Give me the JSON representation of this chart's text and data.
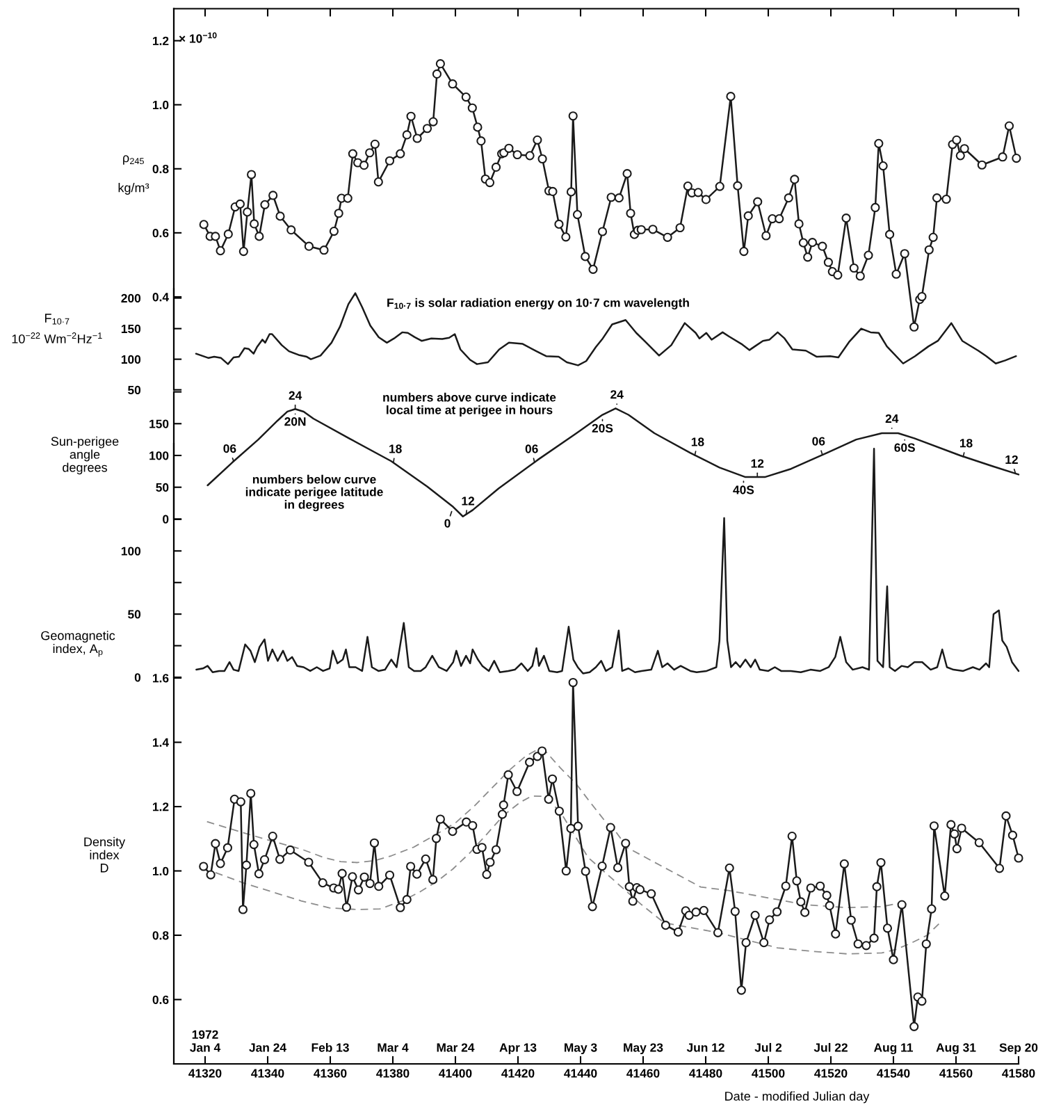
{
  "chart_data": [
    {
      "type": "line",
      "ylabel": "ρ$_{245}$\nkg/m³",
      "annotations": [
        "× 10$^{−10}$"
      ],
      "xlim": [
        41310,
        41580
      ],
      "xticks": [
        41320,
        41340,
        41360,
        41380,
        41400,
        41420,
        41440,
        41460,
        41480,
        41500,
        41520,
        41540,
        41560,
        41580
      ],
      "ylim": [
        0.3,
        1.3
      ],
      "yticks": [
        0.4,
        0.6,
        0.8,
        {
          "value": 1.0,
          "label": "1.0"
        },
        1.2
      ],
      "tick_labels": "y",
      "marker": "circle",
      "series": [
        {
          "color": "#1a1a1a",
          "x": [
            41319.6,
            41321.6,
            41323.3,
            41324.9,
            41327.4,
            41329.6,
            41331.2,
            41332.3,
            41333.5,
            41334.8,
            41335.7,
            41337.3,
            41339.1,
            41341.7,
            41344.0,
            41347.5,
            41353.2,
            41358.0,
            41361.2,
            41362.7,
            41363.6,
            41365.6,
            41367.2,
            41368.8,
            41370.8,
            41372.6,
            41374.3,
            41375.4,
            41379.0,
            41382.4,
            41384.5,
            41385.8,
            41387.8,
            41391.0,
            41392.9,
            41394.1,
            41395.2,
            41399.1,
            41403.4,
            41405.4,
            41407.1,
            41408.2,
            41409.6,
            41411.0,
            41413.0,
            41414.8,
            41415.5,
            41417.1,
            41419.8,
            41423.8,
            41426.2,
            41427.8,
            41429.9,
            41431.1,
            41433.1,
            41435.3,
            41437.0,
            41437.6,
            41439.0,
            41441.5,
            41444.0,
            41447.0,
            41449.8,
            41452.3,
            41454.9,
            41456.0,
            41457.2,
            41458.3,
            41459.4,
            41463.1,
            41467.8,
            41471.8,
            41474.3,
            41475.6,
            41477.6,
            41480.1,
            41484.5,
            41488.0,
            41490.2,
            41492.2,
            41493.6,
            41496.6,
            41499.3,
            41501.3,
            41503.5,
            41506.5,
            41508.4,
            41509.8,
            41511.2,
            41512.6,
            41514.1,
            41517.3,
            41519.2,
            41520.5,
            41522.2,
            41524.9,
            41527.4,
            41529.4,
            41532.0,
            41534.2,
            41535.3,
            41536.7,
            41538.8,
            41540.9,
            41543.6,
            41546.6,
            41548.4,
            41549.1,
            41551.4,
            41552.7,
            41553.9,
            41556.9,
            41558.9,
            41560.2,
            41561.4,
            41562.7,
            41568.3,
            41574.9,
            41577.0,
            41579.3
          ],
          "values": [
            0.626,
            0.589,
            0.589,
            0.544,
            0.596,
            0.681,
            0.69,
            0.542,
            0.665,
            0.782,
            0.628,
            0.589,
            0.688,
            0.717,
            0.652,
            0.609,
            0.558,
            0.546,
            0.605,
            0.661,
            0.708,
            0.708,
            0.847,
            0.819,
            0.811,
            0.85,
            0.877,
            0.759,
            0.825,
            0.847,
            0.906,
            0.964,
            0.895,
            0.926,
            0.947,
            1.096,
            1.128,
            1.065,
            1.024,
            0.99,
            0.93,
            0.887,
            0.768,
            0.757,
            0.805,
            0.847,
            0.85,
            0.864,
            0.844,
            0.841,
            0.89,
            0.831,
            0.731,
            0.729,
            0.627,
            0.587,
            0.728,
            0.965,
            0.657,
            0.526,
            0.486,
            0.604,
            0.711,
            0.709,
            0.785,
            0.661,
            0.595,
            0.608,
            0.61,
            0.611,
            0.586,
            0.616,
            0.746,
            0.725,
            0.726,
            0.704,
            0.745,
            1.026,
            0.747,
            0.542,
            0.653,
            0.697,
            0.591,
            0.644,
            0.644,
            0.709,
            0.767,
            0.628,
            0.569,
            0.524,
            0.57,
            0.558,
            0.508,
            0.479,
            0.468,
            0.646,
            0.49,
            0.465,
            0.53,
            0.679,
            0.879,
            0.809,
            0.595,
            0.471,
            0.535,
            0.306,
            0.392,
            0.401,
            0.547,
            0.586,
            0.709,
            0.705,
            0.876,
            0.89,
            0.841,
            0.863,
            0.812,
            0.837,
            0.934,
            0.833
          ]
        }
      ]
    },
    {
      "type": "line",
      "ylabel": "F$_{10·7}$\n10$^{−22}$ Wm$^{−2}$Hz$^{−1}$",
      "annotations": [
        "F$_{10·7}$ is solar radiation energy on 10·7 cm wavelength"
      ],
      "xlim": [
        41310,
        41580
      ],
      "ylim": [
        50,
        215
      ],
      "yticks": [
        50,
        100,
        150,
        200
      ],
      "tick_labels": "y",
      "series": [
        {
          "color": "#1a1a1a",
          "x": [
            41317.1,
            41321.1,
            41322.9,
            41325.1,
            41327.3,
            41329.1,
            41330.8,
            41332.6,
            41333.9,
            41335.5,
            41336.6,
            41338.3,
            41339.2,
            41340.6,
            41341.4,
            41344.5,
            41346.8,
            41349.9,
            41352.5,
            41353.8,
            41356.9,
            41360.4,
            41363.1,
            41365.8,
            41368.0,
            41370.2,
            41372.8,
            41375.5,
            41378.1,
            41380.4,
            41383.0,
            41384.8,
            41387.0,
            41389.2,
            41392.3,
            41395.8,
            41398.0,
            41399.8,
            41401.6,
            41404.7,
            41406.9,
            41410.4,
            41414.0,
            41417.1,
            41421.5,
            41425.9,
            41429.0,
            41433.0,
            41435.6,
            41439.2,
            41441.8,
            41444.9,
            41447.1,
            41450.1,
            41454.4,
            41457.8,
            41460.4,
            41465.1,
            41469.0,
            41473.3,
            41476.8,
            41478.0,
            41480.2,
            41481.9,
            41485.4,
            41487.5,
            41491.4,
            41494.0,
            41495.7,
            41498.3,
            41500.4,
            41503.0,
            41505.2,
            41507.7,
            41512.0,
            41515.5,
            41519.8,
            41522.4,
            41525.8,
            41529.7,
            41532.7,
            41535.3,
            41537.9,
            41543.1,
            41546.9,
            41551.2,
            41554.2,
            41558.5,
            41562.0,
            41567.1,
            41569.7,
            41572.7,
            41575.7,
            41579.2
          ],
          "values": [
            109,
            102,
            104,
            102,
            92,
            103,
            104,
            118,
            117,
            109,
            120,
            132,
            127,
            141,
            141,
            123,
            113,
            107,
            104,
            100,
            106,
            127,
            153,
            190,
            208,
            185,
            155,
            136,
            127,
            134,
            144,
            143,
            136,
            130,
            134,
            133,
            135,
            141,
            116,
            99,
            92,
            95,
            116,
            127,
            125,
            113,
            105,
            104,
            95,
            90,
            97,
            120,
            134,
            157,
            164,
            143,
            130,
            106,
            123,
            159,
            143,
            134,
            143,
            132,
            144,
            137,
            125,
            115,
            121,
            130,
            132,
            144,
            134,
            116,
            114,
            104,
            105,
            103,
            128,
            150,
            144,
            143,
            121,
            93,
            105,
            121,
            130,
            159,
            130,
            114,
            105,
            93,
            98,
            105
          ]
        }
      ]
    },
    {
      "type": "line",
      "ylabel": "Sun-perigee\nangle\ndegrees",
      "xlim": [
        41310,
        41580
      ],
      "ylim": [
        0,
        200
      ],
      "yticks": [
        0,
        50,
        100,
        150,
        {
          "value": 200,
          "label": null
        }
      ],
      "tick_labels": "y",
      "annotations": [
        "numbers above curve indicate\nlocal time at perigee in hours",
        "numbers below curve\nindicate perigee latitude\nin degrees",
        {
          "text": "06",
          "x": 41329.1,
          "y": 91
        },
        {
          "text": "24",
          "x": 41348.8,
          "y": 173
        },
        {
          "text": "20N",
          "x": 41348.8,
          "y": 173
        },
        {
          "text": "18",
          "x": 41380.2,
          "y": 89
        },
        {
          "text": "12",
          "x": 41403.4,
          "y": 7
        },
        {
          "text": "0",
          "x": 41399.3,
          "y": 19
        },
        {
          "text": "06",
          "x": 41425.3,
          "y": 89
        },
        {
          "text": "24",
          "x": 41451.6,
          "y": 173
        },
        {
          "text": "20S",
          "x": 41447.0,
          "y": 164
        },
        {
          "text": "18",
          "x": 41476.5,
          "y": 100
        },
        {
          "text": "12",
          "x": 41496.5,
          "y": 66
        },
        {
          "text": "40S",
          "x": 41492.1,
          "y": 67
        },
        {
          "text": "06",
          "x": 41517.3,
          "y": 101
        },
        {
          "text": "24",
          "x": 41539.5,
          "y": 135
        },
        {
          "text": "60S",
          "x": 41543.6,
          "y": 132
        },
        {
          "text": "18",
          "x": 41562.3,
          "y": 98
        },
        {
          "text": "12",
          "x": 41579.0,
          "y": 72
        }
      ],
      "series": [
        {
          "color": "#1a1a1a",
          "x": [
            41320.8,
            41328.7,
            41337.0,
            41343.2,
            41346.3,
            41348.8,
            41351.5,
            41354.6,
            41366.0,
            41379.5,
            41391.0,
            41399.3,
            41402.4,
            41405.5,
            41413.8,
            41426.3,
            41438.7,
            41447.0,
            41451.2,
            41455.3,
            41463.6,
            41475.1,
            41484.4,
            41492.7,
            41498.9,
            41507.3,
            41518.7,
            41528.1,
            41536.3,
            41541.5,
            41546.7,
            41561.3,
            41571.7,
            41580.0
          ],
          "values": [
            53,
            89,
            125,
            155,
            169,
            173,
            169,
            158,
            127,
            91,
            51,
            19,
            4,
            14,
            48,
            93,
            135,
            164,
            174,
            164,
            135,
            104,
            81,
            66,
            66,
            79,
            104,
            125,
            135,
            135,
            127,
            100,
            83,
            70
          ]
        }
      ]
    },
    {
      "type": "line",
      "ylabel": "Geomagnetic\nindex, A$_{p}$",
      "xlim": [
        41310,
        41580
      ],
      "ylim": [
        0,
        185
      ],
      "yticks": [
        0,
        {
          "value": 25,
          "label": null
        },
        50,
        {
          "value": 75,
          "label": null
        },
        100,
        {
          "value": 125,
          "label": null
        }
      ],
      "tick_labels": "y",
      "series": [
        {
          "color": "#1a1a1a",
          "x": [
            41317.2,
            41319.3,
            41320.8,
            41322.4,
            41324.5,
            41326.2,
            41327.8,
            41329.1,
            41330.7,
            41332.8,
            41334.5,
            41335.9,
            41337.4,
            41339.0,
            41340.1,
            41341.5,
            41343.2,
            41344.9,
            41346.3,
            41347.8,
            41349.4,
            41351.5,
            41353.6,
            41355.7,
            41357.7,
            41359.8,
            41360.8,
            41362.3,
            41364.0,
            41365.0,
            41366.1,
            41368.1,
            41370.2,
            41371.9,
            41373.3,
            41375.4,
            41377.5,
            41379.5,
            41381.2,
            41383.5,
            41385.1,
            41386.8,
            41388.9,
            41390.5,
            41392.6,
            41394.7,
            41397.2,
            41399.3,
            41400.3,
            41401.8,
            41403.4,
            41404.7,
            41405.5,
            41407.2,
            41408.6,
            41410.7,
            41412.4,
            41414.2,
            41416.9,
            41419.0,
            41421.1,
            41423.1,
            41424.6,
            41425.9,
            41426.7,
            41428.3,
            41430.0,
            41432.5,
            41434.1,
            41436.2,
            41437.7,
            41439.1,
            41440.8,
            41442.9,
            41444.9,
            41446.6,
            41448.1,
            41450.1,
            41452.2,
            41453.3,
            41455.3,
            41457.4,
            41459.5,
            41462.6,
            41464.7,
            41466.1,
            41467.8,
            41469.9,
            41472.0,
            41475.1,
            41477.1,
            41480.3,
            41483.4,
            41484.4,
            41485.9,
            41486.9,
            41488.1,
            41489.6,
            41491.0,
            41492.7,
            41494.4,
            41495.8,
            41497.3,
            41500.0,
            41502.1,
            41504.1,
            41507.2,
            41510.4,
            41513.5,
            41516.6,
            41519.3,
            41521.4,
            41523.0,
            41524.9,
            41527.0,
            41530.1,
            41532.2,
            41533.8,
            41534.9,
            41536.7,
            41538.0,
            41538.8,
            41540.5,
            41542.6,
            41544.6,
            41546.7,
            41549.2,
            41551.9,
            41554.0,
            41555.6,
            41557.1,
            41559.2,
            41562.3,
            41565.4,
            41567.5,
            41569.6,
            41570.6,
            41572.0,
            41573.7,
            41574.8,
            41576.2,
            41577.9,
            41580.0
          ],
          "values": [
            6,
            7,
            9,
            4,
            5,
            5,
            12,
            6,
            5,
            26,
            21,
            12,
            24,
            30,
            13,
            22,
            13,
            21,
            13,
            16,
            9,
            8,
            5,
            8,
            5,
            7,
            21,
            11,
            14,
            22,
            8,
            8,
            5,
            32,
            8,
            5,
            6,
            14,
            8,
            43,
            8,
            5,
            5,
            8,
            17,
            8,
            5,
            12,
            21,
            9,
            17,
            11,
            22,
            14,
            9,
            5,
            13,
            4,
            5,
            6,
            11,
            5,
            9,
            23,
            9,
            17,
            5,
            4,
            5,
            40,
            14,
            8,
            3,
            4,
            8,
            13,
            5,
            8,
            37,
            5,
            7,
            4,
            5,
            6,
            21,
            8,
            11,
            6,
            9,
            5,
            4,
            5,
            8,
            29,
            126,
            29,
            8,
            12,
            8,
            14,
            8,
            14,
            6,
            5,
            8,
            5,
            5,
            4,
            6,
            5,
            8,
            16,
            32,
            12,
            6,
            8,
            6,
            181,
            13,
            8,
            72,
            8,
            5,
            9,
            8,
            12,
            12,
            6,
            8,
            22,
            8,
            6,
            5,
            8,
            6,
            11,
            8,
            50,
            53,
            29,
            24,
            12,
            5
          ]
        }
      ]
    },
    {
      "type": "line",
      "ylabel": "Density\nindex\nD",
      "xlabel": "Date - modified Julian day",
      "xlim": [
        41310,
        41580
      ],
      "xticks": [
        41320,
        41340,
        41360,
        41380,
        41400,
        41420,
        41440,
        41460,
        41480,
        41500,
        41520,
        41540,
        41560,
        41580
      ],
      "x2lim": [
        "1971-12-25",
        "1972-09-20"
      ],
      "x2ticks": [
        {
          "value": "1972-01-04",
          "label": "1972\nJan 4"
        },
        {
          "value": "1972-01-24",
          "label": "Jan 24"
        },
        {
          "value": "1972-02-13",
          "label": "Feb 13"
        },
        {
          "value": "1972-03-04",
          "label": "Mar 4"
        },
        {
          "value": "1972-03-24",
          "label": "Mar 24"
        },
        {
          "value": "1972-04-13",
          "label": "Apr 13"
        },
        {
          "value": "1972-05-03",
          "label": "May 3"
        },
        {
          "value": "1972-05-23",
          "label": "May 23"
        },
        {
          "value": "1972-06-12",
          "label": "Jun 12"
        },
        {
          "value": "1972-07-02",
          "label": "Jul 2"
        },
        {
          "value": "1972-07-22",
          "label": "Jul 22"
        },
        {
          "value": "1972-08-11",
          "label": "Aug 11"
        },
        {
          "value": "1972-08-31",
          "label": "Aug 31"
        },
        {
          "value": "1972-09-20",
          "label": "Sep 20"
        }
      ],
      "ylim": [
        0.4,
        1.6
      ],
      "yticks": [
        0.6,
        0.8,
        {
          "value": 1.0,
          "label": "1.0"
        },
        1.2,
        1.4,
        1.6
      ],
      "marker": "circle",
      "series": [
        {
          "color": "#1a1a1a",
          "x": [
            41319.5,
            41321.8,
            41323.3,
            41324.9,
            41327.2,
            41329.4,
            41331.4,
            41332.1,
            41333.2,
            41334.6,
            41335.6,
            41337.2,
            41339.0,
            41341.6,
            41343.9,
            41347.2,
            41353.1,
            41357.6,
            41361.1,
            41362.6,
            41363.8,
            41365.2,
            41367.1,
            41369.0,
            41370.9,
            41372.7,
            41374.1,
            41375.5,
            41379.0,
            41382.4,
            41384.5,
            41385.7,
            41387.7,
            41390.5,
            41392.8,
            41393.9,
            41395.2,
            41399.1,
            41403.5,
            41405.5,
            41406.9,
            41408.5,
            41410.0,
            41411.1,
            41413.0,
            41415.0,
            41415.4,
            41416.9,
            41419.7,
            41423.7,
            41426.2,
            41427.7,
            41429.8,
            41431.0,
            41433.2,
            41435.4,
            41436.9,
            41437.6,
            41439.2,
            41441.6,
            41443.8,
            41446.9,
            41449.6,
            41451.9,
            41454.4,
            41455.6,
            41456.7,
            41458.0,
            41459.0,
            41462.6,
            41467.2,
            41471.2,
            41473.6,
            41474.7,
            41476.9,
            41479.4,
            41483.9,
            41487.6,
            41489.4,
            41491.4,
            41492.9,
            41495.8,
            41498.6,
            41500.4,
            41502.8,
            41505.6,
            41507.6,
            41509.1,
            41510.4,
            41511.7,
            41513.6,
            41516.6,
            41518.7,
            41519.6,
            41521.5,
            41524.3,
            41526.5,
            41528.7,
            41531.3,
            41533.8,
            41534.7,
            41536.0,
            41538.1,
            41540.0,
            41542.7,
            41546.6,
            41547.8,
            41549.1,
            41550.5,
            41552.2,
            41553.0,
            41556.4,
            41558.4,
            41559.5,
            41560.3,
            41561.8,
            41567.4,
            41573.9,
            41576.0,
            41578.1,
            41580.0
          ],
          "values": [
            1.014,
            0.988,
            1.085,
            1.023,
            1.072,
            1.223,
            1.215,
            0.88,
            1.018,
            1.241,
            1.082,
            0.991,
            1.035,
            1.108,
            1.036,
            1.065,
            1.027,
            0.963,
            0.947,
            0.943,
            0.992,
            0.887,
            0.982,
            0.941,
            0.981,
            0.961,
            1.087,
            0.952,
            0.987,
            0.886,
            0.911,
            1.014,
            0.99,
            1.037,
            0.973,
            1.101,
            1.161,
            1.123,
            1.152,
            1.141,
            1.067,
            1.073,
            0.989,
            1.027,
            1.066,
            1.176,
            1.205,
            1.299,
            1.247,
            1.338,
            1.356,
            1.373,
            1.223,
            1.286,
            1.186,
            1.0,
            1.132,
            1.586,
            1.139,
            0.999,
            0.889,
            1.015,
            1.135,
            1.01,
            1.086,
            0.951,
            0.906,
            0.948,
            0.942,
            0.929,
            0.831,
            0.81,
            0.876,
            0.862,
            0.872,
            0.877,
            0.808,
            1.009,
            0.874,
            0.629,
            0.777,
            0.862,
            0.777,
            0.848,
            0.873,
            0.953,
            1.108,
            0.969,
            0.904,
            0.871,
            0.947,
            0.953,
            0.924,
            0.892,
            0.804,
            1.022,
            0.847,
            0.773,
            0.768,
            0.791,
            0.951,
            1.026,
            0.822,
            0.724,
            0.895,
            0.516,
            0.608,
            0.595,
            0.773,
            0.882,
            1.14,
            0.922,
            1.144,
            1.115,
            1.069,
            1.133,
            1.088,
            1.008,
            1.171,
            1.111,
            1.04
          ]
        },
        {
          "color": "#8c8c8c",
          "marker": "none",
          "line_style": "dashed",
          "x": [
            41320.6,
            41332.8,
            41341.7,
            41350.7,
            41357.9,
            41363.3,
            41368.7,
            41374.1,
            41379.5,
            41386.7,
            41393.9,
            41400.1,
            41406.4,
            41411.8,
            41417.2,
            41422.6,
            41426.2,
            41428.9,
            41433.4,
            41438.8,
            41442.8,
            41447.4,
            41451.4,
            41455.0,
            41478.4,
            41487.3,
            41502.9,
            41511.8,
            41525.2,
            41536.3,
            41541.9
          ],
          "values": [
            1.153,
            1.117,
            1.092,
            1.068,
            1.042,
            1.029,
            1.026,
            1.032,
            1.047,
            1.074,
            1.114,
            1.15,
            1.205,
            1.259,
            1.313,
            1.358,
            1.377,
            1.371,
            1.322,
            1.268,
            1.217,
            1.16,
            1.12,
            1.072,
            0.95,
            0.939,
            0.911,
            0.895,
            0.886,
            0.889,
            0.9
          ]
        },
        {
          "color": "#8c8c8c",
          "marker": "none",
          "line_style": "dashed",
          "x": [
            41323.3,
            41332.8,
            41341.7,
            41350.7,
            41359.7,
            41368.7,
            41375.9,
            41383.1,
            41388.5,
            41393.9,
            41399.2,
            41404.6,
            41410.0,
            41415.4,
            41420.8,
            41424.4,
            41428.0,
            41433.4,
            41437.9,
            41442.4,
            41459.5,
            41466.7,
            41484.0,
            41502.9,
            41514.1,
            41525.2,
            41536.3,
            41540.8,
            41545.3,
            41550.8,
            41554.7
          ],
          "values": [
            0.995,
            0.961,
            0.934,
            0.907,
            0.885,
            0.88,
            0.882,
            0.907,
            0.934,
            0.966,
            1.006,
            1.056,
            1.114,
            1.173,
            1.214,
            1.233,
            1.232,
            1.186,
            1.114,
            1.042,
            0.895,
            0.839,
            0.808,
            0.761,
            0.75,
            0.742,
            0.745,
            0.756,
            0.774,
            0.8,
            0.837
          ]
        }
      ]
    }
  ]
}
